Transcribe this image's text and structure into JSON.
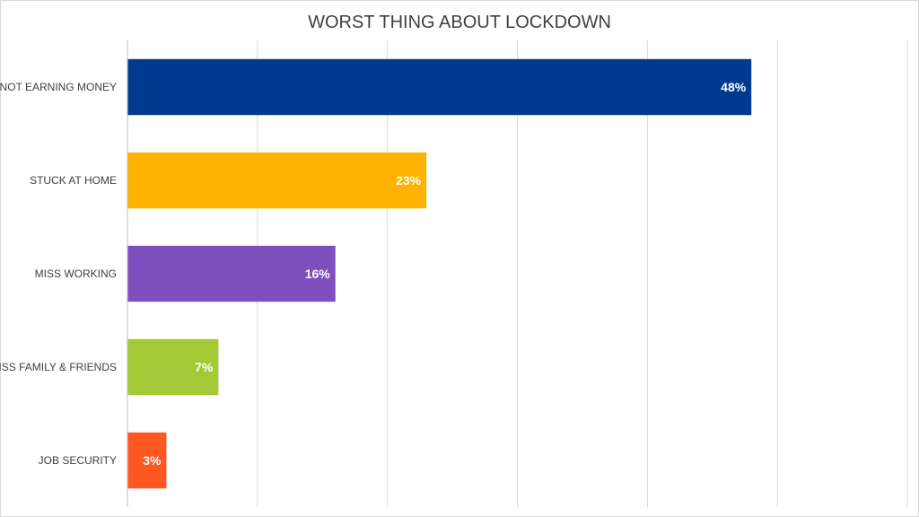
{
  "chart_data": {
    "type": "bar",
    "orientation": "horizontal",
    "title": "WORST THING ABOUT LOCKDOWN",
    "categories": [
      "NOT EARNING MONEY",
      "STUCK AT HOME",
      "MISS WORKING",
      "MISS FAMILY & FRIENDS",
      "JOB SECURITY"
    ],
    "values": [
      48,
      23,
      16,
      7,
      3
    ],
    "data_labels": [
      "48%",
      "23%",
      "16%",
      "7%",
      "3%"
    ],
    "bar_colors": [
      "#003A8F",
      "#FFB300",
      "#7E4FBF",
      "#A3C936",
      "#FF5722"
    ],
    "xlim": [
      0,
      60
    ],
    "grid": true,
    "gridline_color": "#d9d9d9",
    "axis_color": "#bfbfbf"
  }
}
